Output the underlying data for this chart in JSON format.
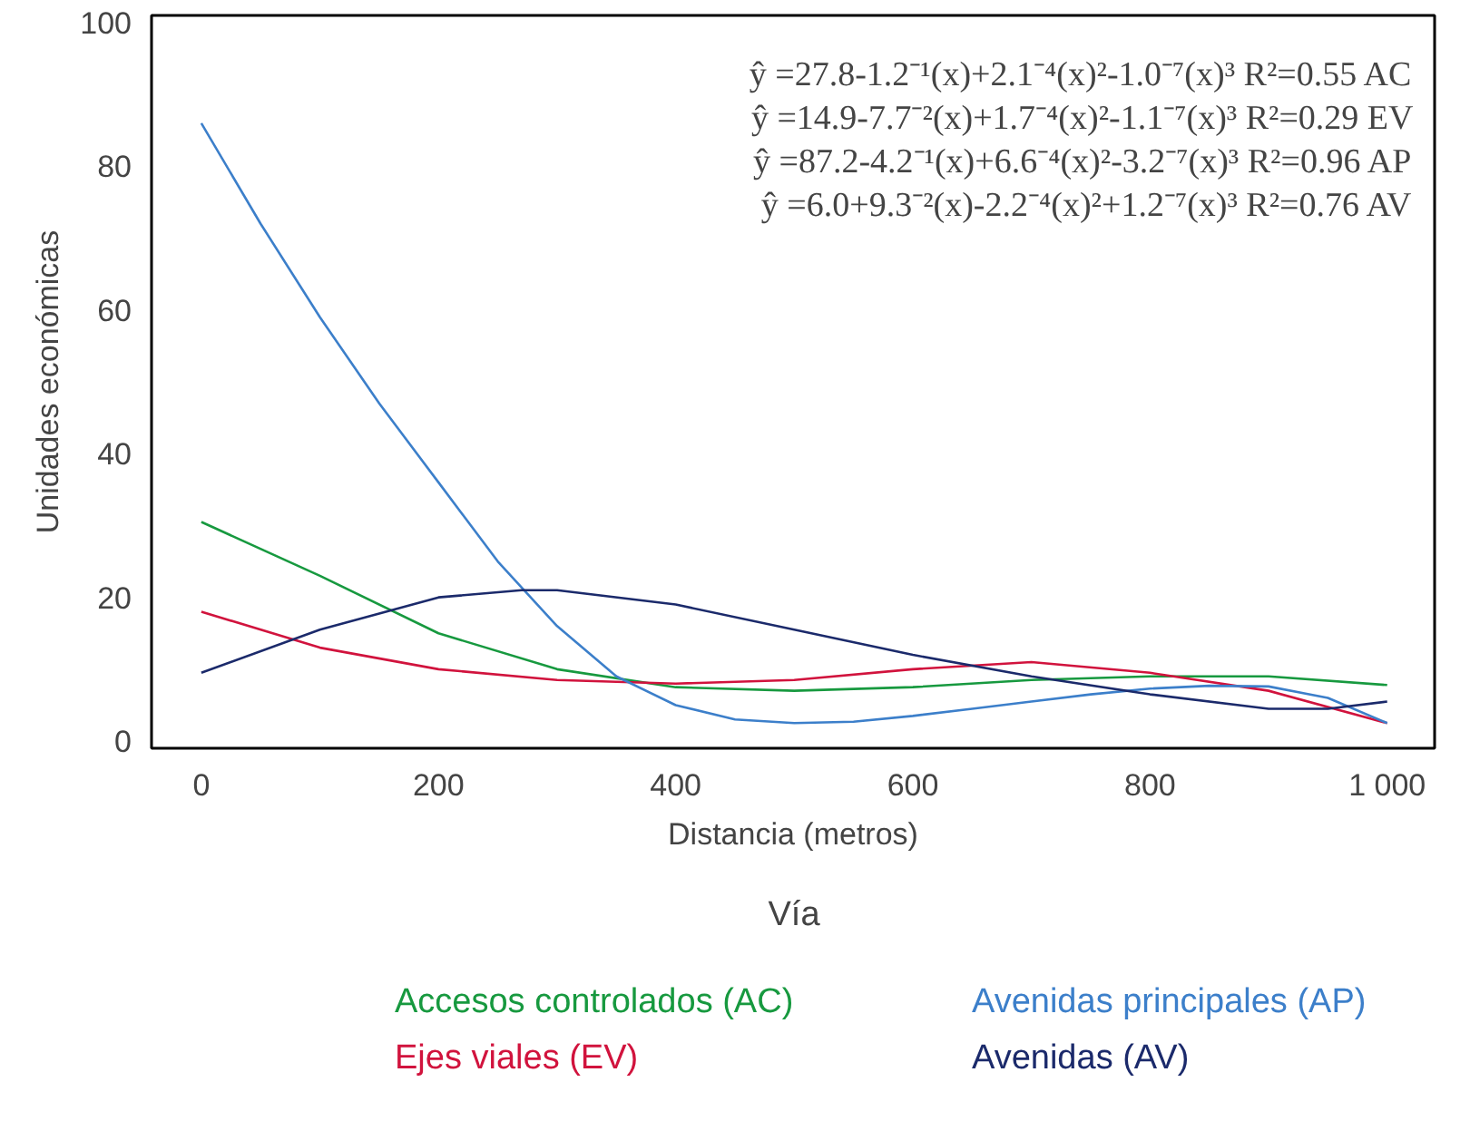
{
  "chart_data": {
    "type": "line",
    "xlabel": "Distancia (metros)",
    "ylabel": "Unidades económicas",
    "legend_title": "Vía",
    "xlim": [
      -42,
      1040
    ],
    "ylim": [
      -1,
      101
    ],
    "xticks": [
      0,
      200,
      400,
      600,
      800,
      {
        "value": 1000,
        "label": "1 000"
      }
    ],
    "yticks": [
      0,
      20,
      40,
      60,
      80,
      100
    ],
    "grid": false,
    "legend": "bottom",
    "marker": "none",
    "line_style": "solid",
    "annotations": [
      "ŷ =27.8-1.2⁻¹(x)+2.1⁻⁴(x)²-1.0⁻⁷(x)³ R²=0.55  AC",
      "ŷ =14.9-7.7⁻²(x)+1.7⁻⁴(x)²-1.1⁻⁷(x)³ R²=0.29  EV",
      "ŷ =87.2-4.2⁻¹(x)+6.6⁻⁴(x)²-3.2⁻⁷(x)³ R²=0.96  AP",
      "ŷ =6.0+9.3⁻²(x)-2.2⁻⁴(x)²+1.2⁻⁷(x)³ R²=0.76  AV"
    ],
    "series": [
      {
        "name": "Accesos controlados (AC)",
        "color": "#17993f",
        "x": [
          0,
          100,
          200,
          300,
          400,
          500,
          600,
          700,
          800,
          900,
          1000
        ],
        "values": [
          30.5,
          23,
          15,
          10,
          7.5,
          7,
          7.5,
          8.5,
          9,
          9,
          7.8
        ]
      },
      {
        "name": "Ejes viales (EV)",
        "color": "#d1133d",
        "x": [
          0,
          100,
          200,
          300,
          400,
          500,
          600,
          700,
          800,
          900,
          1000
        ],
        "values": [
          18,
          13,
          10,
          8.5,
          8,
          8.5,
          10,
          11,
          9.5,
          7,
          2.5
        ]
      },
      {
        "name": "Avenidas principales (AP)",
        "color": "#3c7fca",
        "x": [
          0,
          50,
          100,
          150,
          200,
          250,
          300,
          350,
          400,
          450,
          500,
          550,
          600,
          650,
          700,
          750,
          800,
          850,
          900,
          950,
          1000
        ],
        "values": [
          86,
          72,
          59,
          47,
          36,
          25,
          16,
          9,
          5,
          3,
          2.5,
          2.7,
          3.5,
          4.5,
          5.5,
          6.5,
          7.3,
          7.7,
          7.6,
          6,
          2.5
        ]
      },
      {
        "name": "Avenidas (AV)",
        "color": "#1b2a6b",
        "x": [
          0,
          100,
          200,
          270,
          300,
          400,
          500,
          600,
          700,
          800,
          900,
          950,
          1000
        ],
        "values": [
          9.5,
          15.5,
          20,
          21,
          21,
          19,
          15.5,
          12,
          9,
          6.5,
          4.5,
          4.5,
          5.5
        ]
      }
    ]
  }
}
